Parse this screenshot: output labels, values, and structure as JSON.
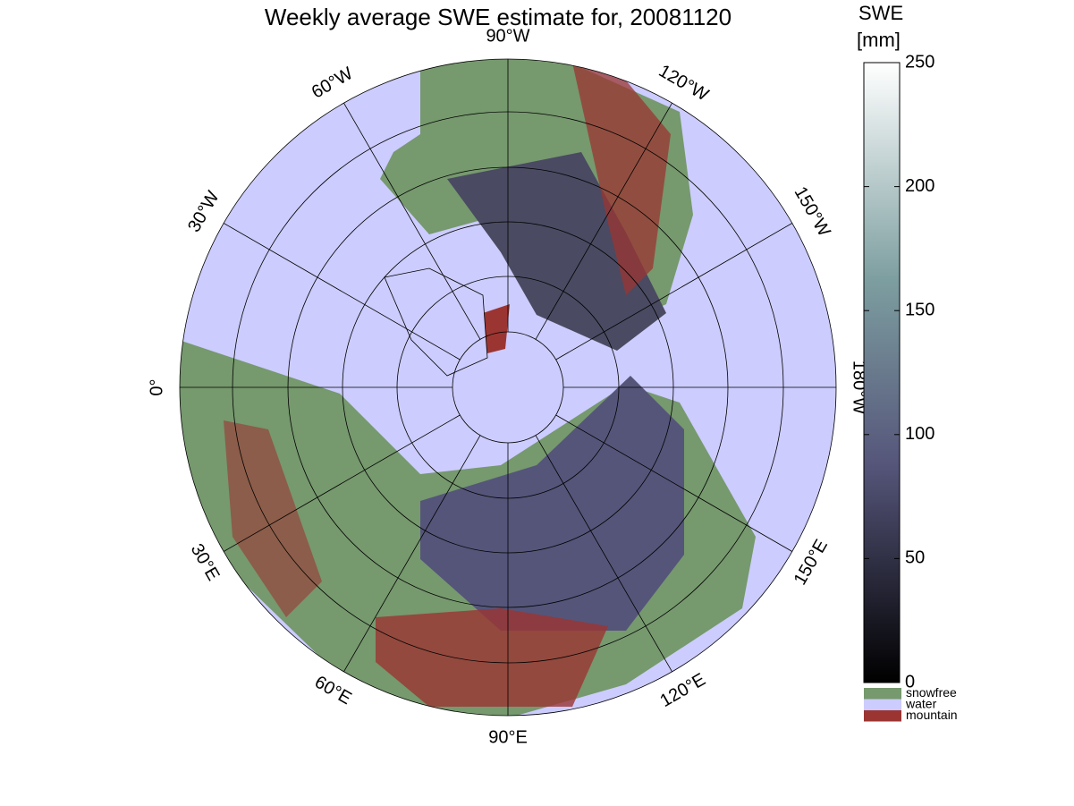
{
  "title": "Weekly average SWE estimate for, 20081120",
  "longitude_labels": [
    "0°",
    "30°E",
    "60°E",
    "90°E",
    "120°E",
    "150°E",
    "180°W",
    "150°W",
    "120°W",
    "90°W",
    "60°W",
    "30°W"
  ],
  "colorbar": {
    "label": [
      "SWE",
      "[mm]"
    ],
    "lim": [
      0,
      250
    ],
    "ticks": [
      0,
      50,
      100,
      150,
      200,
      250
    ]
  },
  "legend": [
    {
      "name": "snowfree",
      "color": "#76996e"
    },
    {
      "name": "water",
      "color": "#ccccfe"
    },
    {
      "name": "mountain",
      "color": "#9b3532"
    }
  ]
}
